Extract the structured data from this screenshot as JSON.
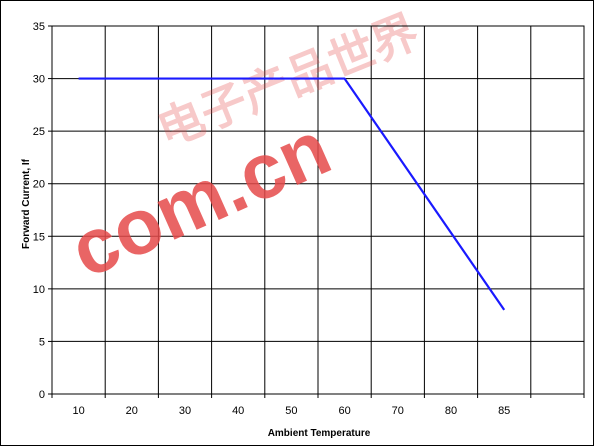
{
  "chart_data": {
    "type": "line",
    "title": "",
    "xlabel": "Ambient Temperature",
    "ylabel": "Forward Current, If",
    "ylim": [
      0,
      35
    ],
    "y_ticks": [
      0,
      5,
      10,
      15,
      20,
      25,
      30,
      35
    ],
    "x_tick_labels": [
      "10",
      "20",
      "30",
      "40",
      "50",
      "60",
      "70",
      "80",
      "85"
    ],
    "grid": true,
    "legend": "none",
    "series": [
      {
        "color": "#1a1aff",
        "points": [
          {
            "x": 10,
            "y": 30
          },
          {
            "x": 60,
            "y": 30
          },
          {
            "x": 85,
            "y": 8
          }
        ]
      }
    ]
  },
  "watermark": {
    "text": "com.cn",
    "chinese": "电子产品世界",
    "color": "#e64b4b"
  }
}
